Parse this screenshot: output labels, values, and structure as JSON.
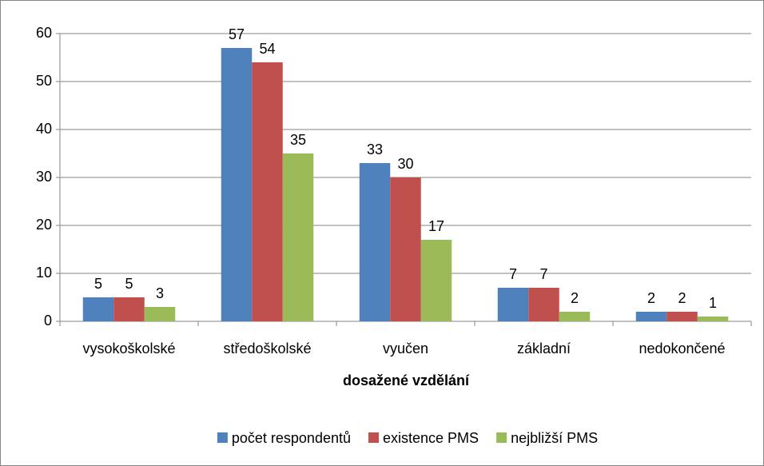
{
  "chart_data": {
    "type": "bar",
    "x_label": "dosažené vzdělání",
    "categories": [
      "vysokoškolské",
      "středoškolské",
      "vyučen",
      "základní",
      "nedokončené"
    ],
    "series": [
      {
        "name": "počet respondentů",
        "color": "#4f81bd",
        "values": [
          5,
          57,
          33,
          7,
          2
        ]
      },
      {
        "name": "existence PMS",
        "color": "#c0504d",
        "values": [
          5,
          54,
          30,
          7,
          2
        ]
      },
      {
        "name": "nejbližší PMS",
        "color": "#9bbb59",
        "values": [
          3,
          35,
          17,
          2,
          1
        ]
      }
    ],
    "ylim": [
      0,
      60
    ],
    "yticks": [
      0,
      10,
      20,
      30,
      40,
      50,
      60
    ],
    "grid": true,
    "legend": "bottom"
  }
}
